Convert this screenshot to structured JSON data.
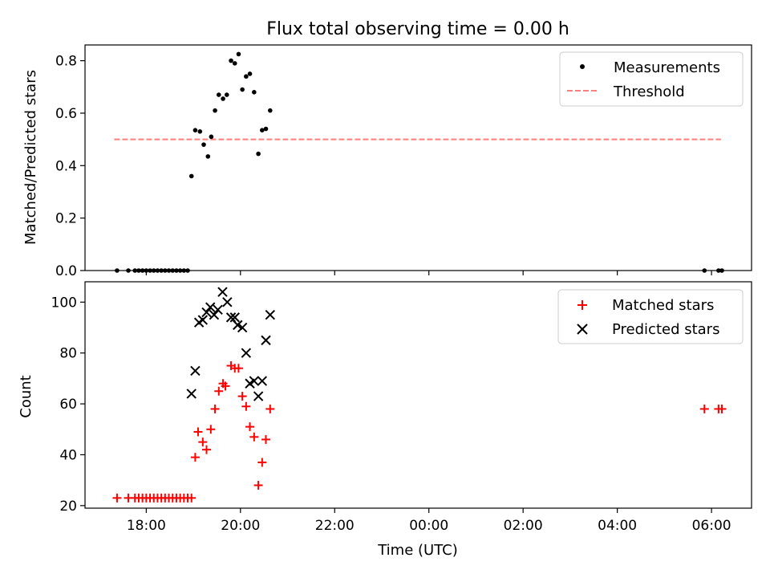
{
  "title": "Flux total observing time = 0.00 h",
  "colors": {
    "measurement": "#000000",
    "threshold": "#ff7f7f",
    "matched": "#ff0000",
    "predicted": "#000000"
  },
  "chart_data": [
    {
      "type": "scatter",
      "ylabel": "Matched/Predicted stars",
      "xlabel": "",
      "xlim": [
        16.7,
        30.85
      ],
      "ylim": [
        0,
        0.86
      ],
      "yticks": [
        0.0,
        0.2,
        0.4,
        0.6,
        0.8
      ],
      "ytick_labels": [
        "0.0",
        "0.2",
        "0.4",
        "0.6",
        "0.8"
      ],
      "legend": {
        "position": "top-right",
        "entries": [
          "Measurements",
          "Threshold"
        ]
      },
      "threshold": {
        "name": "Threshold",
        "y": 0.5,
        "x_range": [
          17.32,
          30.2
        ]
      },
      "series": [
        {
          "name": "Measurements",
          "marker": "dot",
          "x": [
            17.38,
            17.62,
            17.76,
            17.84,
            17.92,
            18.0,
            18.08,
            18.16,
            18.24,
            18.32,
            18.4,
            18.48,
            18.56,
            18.64,
            18.72,
            18.8,
            18.88,
            18.96,
            19.04,
            19.14,
            19.22,
            19.31,
            19.38,
            19.46,
            19.54,
            19.63,
            19.71,
            19.8,
            19.88,
            19.96,
            20.04,
            20.12,
            20.2,
            20.29,
            20.38,
            20.46,
            20.54,
            20.63,
            29.85,
            30.15,
            30.22
          ],
          "y": [
            0.0,
            0.0,
            0.0,
            0.0,
            0.0,
            0.0,
            0.0,
            0.0,
            0.0,
            0.0,
            0.0,
            0.0,
            0.0,
            0.0,
            0.0,
            0.0,
            0.0,
            0.36,
            0.535,
            0.53,
            0.48,
            0.435,
            0.51,
            0.61,
            0.67,
            0.655,
            0.67,
            0.8,
            0.79,
            0.825,
            0.69,
            0.74,
            0.75,
            0.68,
            0.445,
            0.535,
            0.54,
            0.61,
            0.0,
            0.0,
            0.0
          ]
        }
      ]
    },
    {
      "type": "scatter",
      "ylabel": "Count",
      "xlabel": "Time (UTC)",
      "xlim": [
        16.7,
        30.85
      ],
      "ylim": [
        19,
        108
      ],
      "yticks": [
        20,
        40,
        60,
        80,
        100
      ],
      "ytick_labels": [
        "20",
        "40",
        "60",
        "80",
        "100"
      ],
      "xticks": [
        18,
        20,
        22,
        24,
        26,
        28,
        30
      ],
      "xtick_labels": [
        "18:00",
        "20:00",
        "22:00",
        "00:00",
        "02:00",
        "04:00",
        "06:00"
      ],
      "legend": {
        "position": "top-right",
        "entries": [
          "Matched stars",
          "Predicted stars"
        ]
      },
      "series": [
        {
          "name": "Matched stars",
          "marker": "plus",
          "x": [
            17.38,
            17.62,
            17.76,
            17.84,
            17.92,
            18.0,
            18.08,
            18.16,
            18.24,
            18.32,
            18.4,
            18.48,
            18.56,
            18.64,
            18.72,
            18.8,
            18.88,
            18.96,
            19.04,
            19.1,
            19.2,
            19.28,
            19.37,
            19.46,
            19.54,
            19.63,
            19.68,
            19.8,
            19.88,
            19.96,
            20.04,
            20.12,
            20.2,
            20.29,
            20.38,
            20.46,
            20.54,
            20.63,
            29.85,
            30.15,
            30.22
          ],
          "y": [
            23,
            23,
            23,
            23,
            23,
            23,
            23,
            23,
            23,
            23,
            23,
            23,
            23,
            23,
            23,
            23,
            23,
            23,
            39,
            49,
            45,
            42,
            50,
            58,
            65,
            68,
            67,
            75,
            74,
            74,
            63,
            59,
            51,
            47,
            28,
            37,
            46,
            58,
            58,
            58,
            58
          ]
        },
        {
          "name": "Predicted stars",
          "marker": "x",
          "x": [
            18.96,
            19.04,
            19.12,
            19.2,
            19.28,
            19.36,
            19.44,
            19.52,
            19.62,
            19.72,
            19.8,
            19.88,
            19.94,
            20.04,
            20.12,
            20.2,
            20.29,
            20.38,
            20.46,
            20.54,
            20.63
          ],
          "y": [
            64,
            73,
            92,
            93,
            96,
            98,
            95,
            97,
            104,
            100,
            94,
            94,
            91,
            90,
            80,
            68,
            69,
            63,
            69,
            85,
            95
          ]
        }
      ]
    }
  ]
}
